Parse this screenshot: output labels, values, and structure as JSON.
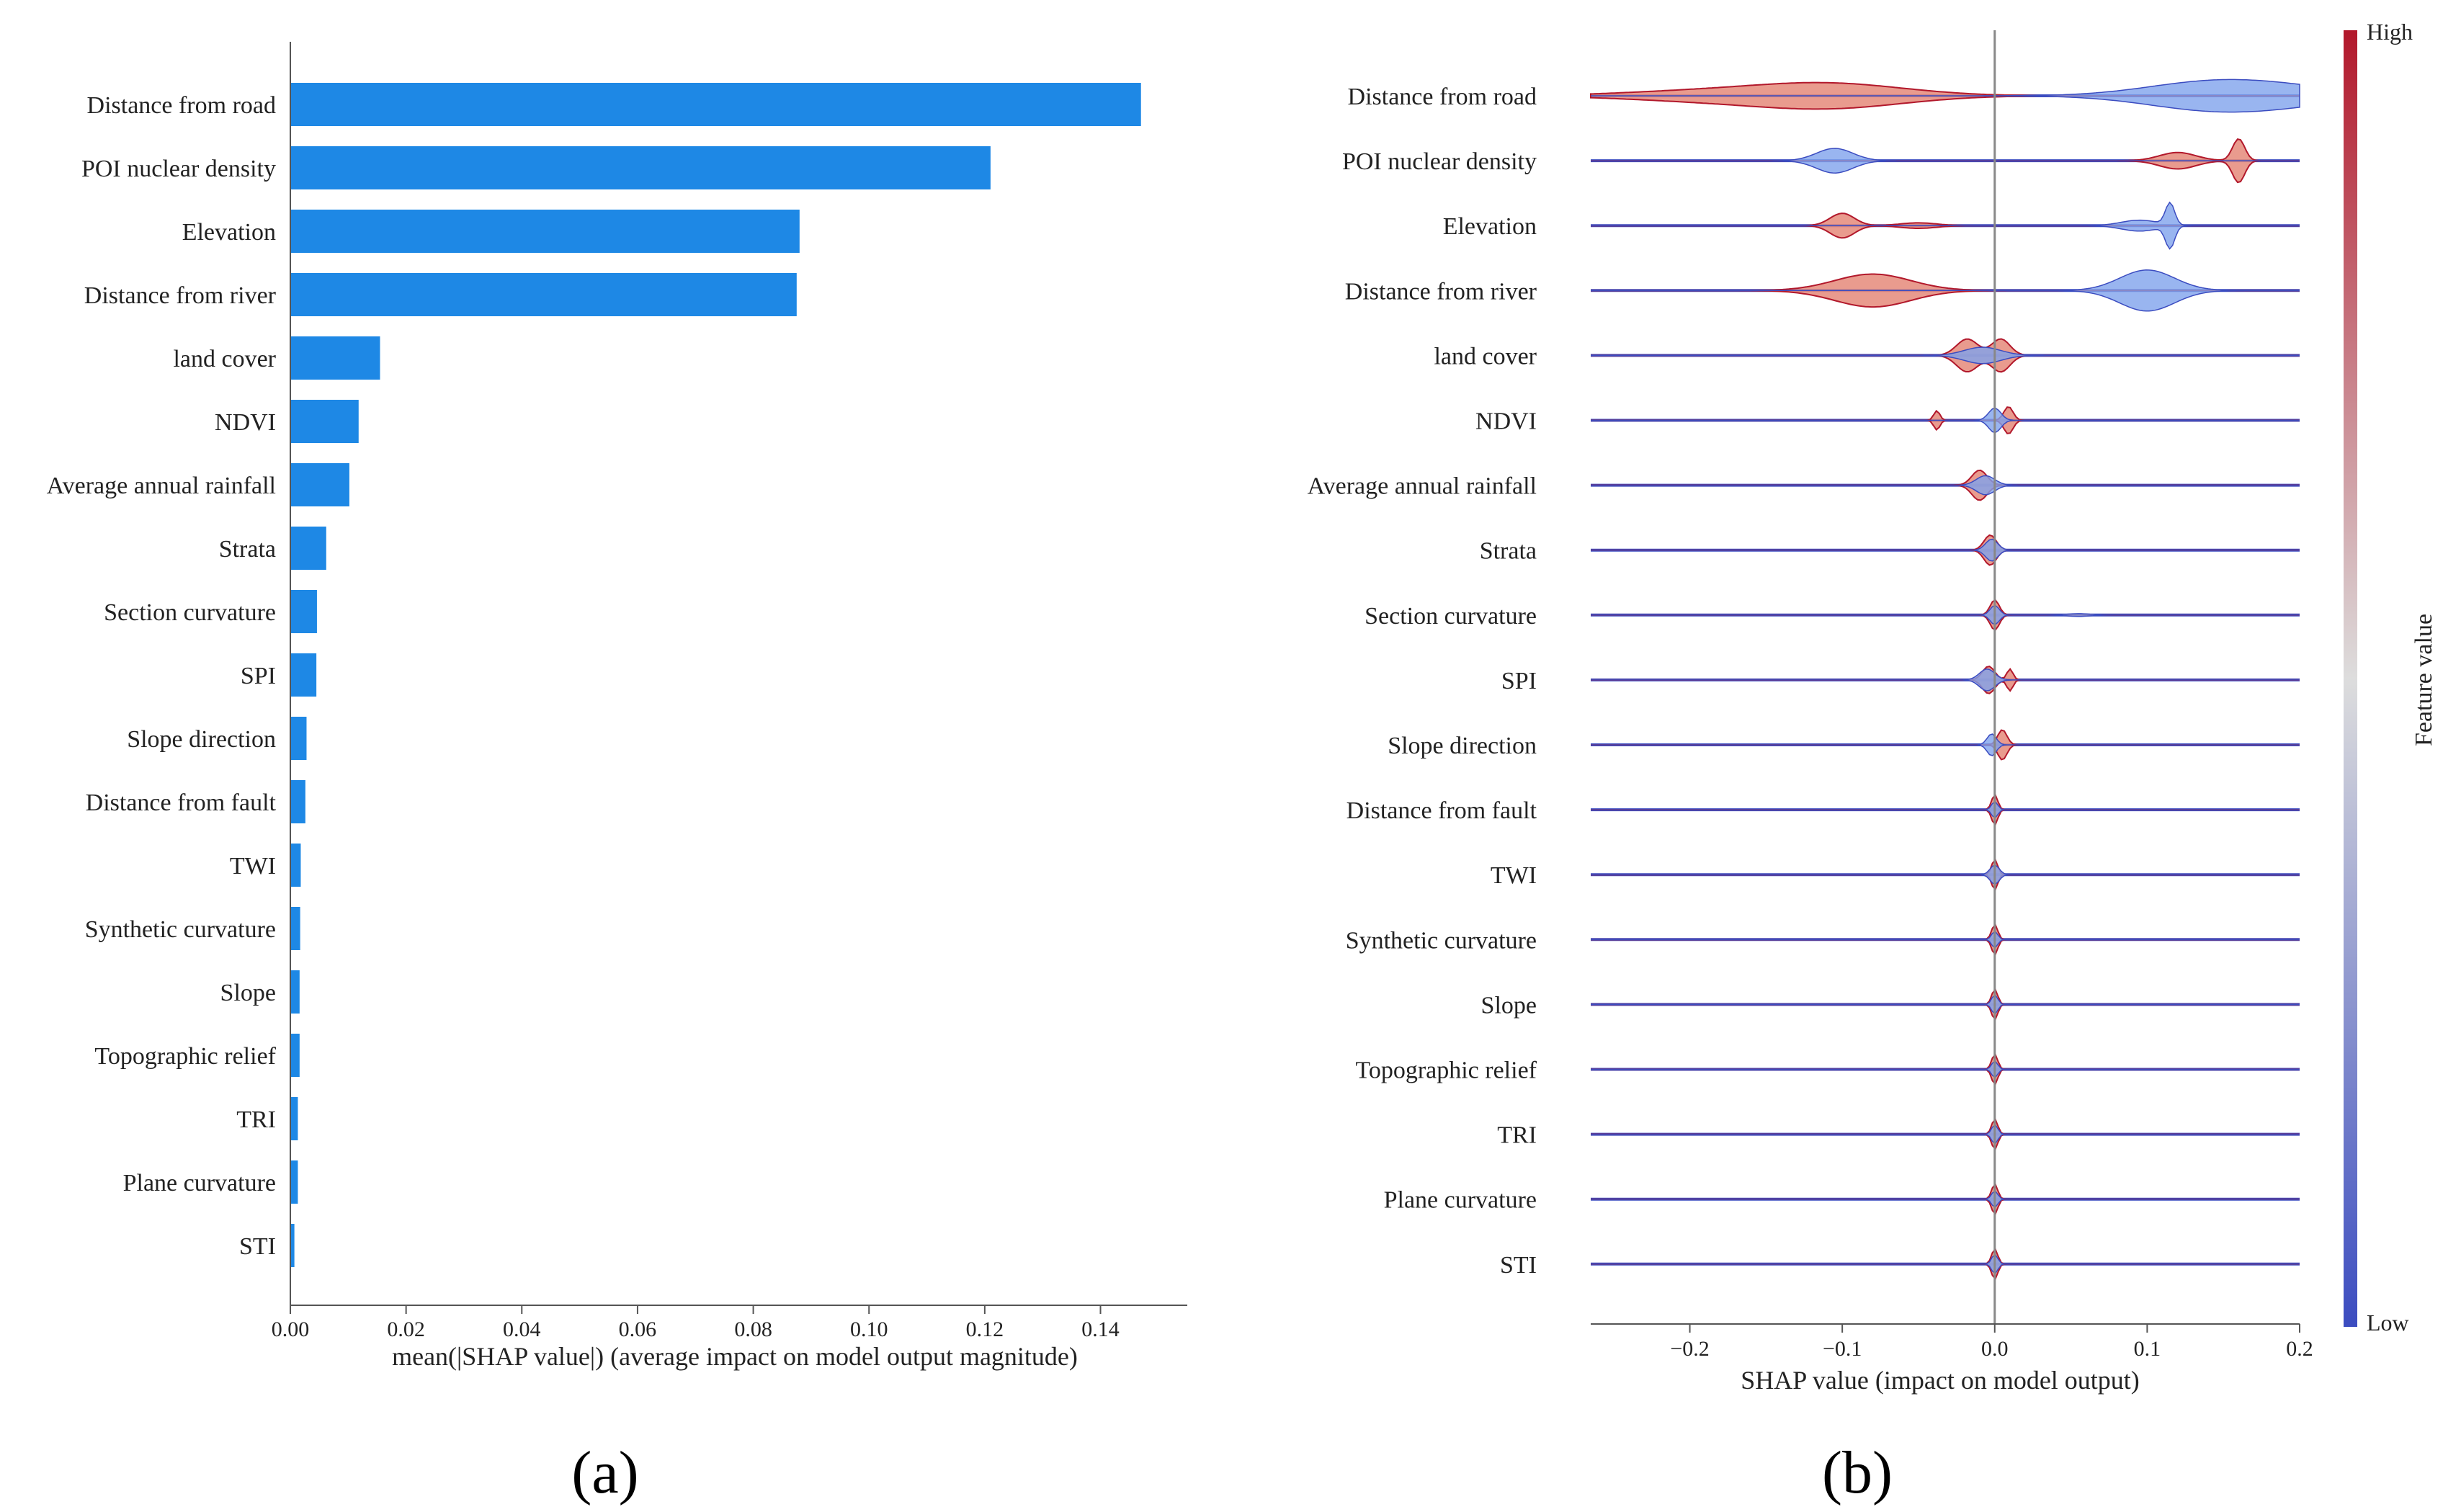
{
  "chart_data": [
    {
      "panel": "a",
      "type": "bar",
      "orientation": "horizontal",
      "categories": [
        "Distance from road",
        "POI nuclear density",
        "Elevation",
        "Distance from river",
        "land cover",
        "NDVI",
        "Average annual rainfall",
        "Strata",
        "Section curvature",
        "SPI",
        "Slope direction",
        "Distance from fault",
        "TWI",
        "Synthetic curvature",
        "Slope",
        "Topographic relief",
        "TRI",
        "Plane curvature",
        "STI"
      ],
      "values": [
        0.147,
        0.121,
        0.088,
        0.0875,
        0.0155,
        0.0118,
        0.0102,
        0.0062,
        0.0046,
        0.0045,
        0.0028,
        0.0026,
        0.0018,
        0.0017,
        0.0016,
        0.0016,
        0.0013,
        0.0013,
        0.0007
      ],
      "xlabel": "mean(|SHAP value|) (average impact on model output magnitude)",
      "xlim": [
        0,
        0.155
      ],
      "xticks": [
        "0.00",
        "0.02",
        "0.04",
        "0.06",
        "0.08",
        "0.10",
        "0.12",
        "0.14"
      ],
      "bar_color": "#1E88E5"
    },
    {
      "panel": "b",
      "type": "violin",
      "categories": [
        "Distance from road",
        "POI nuclear density",
        "Elevation",
        "Distance from river",
        "land cover",
        "NDVI",
        "Average annual rainfall",
        "Strata",
        "Section curvature",
        "SPI",
        "Slope direction",
        "Distance from fault",
        "TWI",
        "Synthetic curvature",
        "Slope",
        "Topographic relief",
        "TRI",
        "Plane curvature",
        "STI"
      ],
      "distributions": [
        {
          "high": [
            {
              "c": -0.11,
              "w": 0.05,
              "h": 0.45
            },
            {
              "c": -0.2,
              "w": 0.05,
              "h": 0.15
            }
          ],
          "low": [
            {
              "c": 0.17,
              "w": 0.05,
              "h": 0.45
            },
            {
              "c": 0.13,
              "w": 0.04,
              "h": 0.2
            }
          ]
        },
        {
          "high": [
            {
              "c": 0.16,
              "w": 0.004,
              "h": 0.8
            },
            {
              "c": 0.12,
              "w": 0.012,
              "h": 0.3
            }
          ],
          "low": [
            {
              "c": -0.105,
              "w": 0.012,
              "h": 0.45
            }
          ]
        },
        {
          "high": [
            {
              "c": -0.1,
              "w": 0.008,
              "h": 0.45
            },
            {
              "c": -0.05,
              "w": 0.012,
              "h": 0.1
            }
          ],
          "low": [
            {
              "c": 0.115,
              "w": 0.003,
              "h": 0.8
            },
            {
              "c": 0.095,
              "w": 0.012,
              "h": 0.2
            }
          ]
        },
        {
          "high": [
            {
              "c": -0.08,
              "w": 0.025,
              "h": 0.6
            }
          ],
          "low": [
            {
              "c": 0.1,
              "w": 0.018,
              "h": 0.75
            }
          ]
        },
        {
          "high": [
            {
              "c": -0.018,
              "w": 0.007,
              "h": 0.6
            },
            {
              "c": 0.004,
              "w": 0.006,
              "h": 0.6
            }
          ],
          "low": [
            {
              "c": -0.008,
              "w": 0.012,
              "h": 0.3
            }
          ]
        },
        {
          "high": [
            {
              "c": -0.038,
              "w": 0.002,
              "h": 0.35
            },
            {
              "c": 0.009,
              "w": 0.003,
              "h": 0.5
            }
          ],
          "low": [
            {
              "c": 0.0,
              "w": 0.004,
              "h": 0.45
            }
          ]
        },
        {
          "high": [
            {
              "c": -0.01,
              "w": 0.005,
              "h": 0.55
            }
          ],
          "low": [
            {
              "c": -0.006,
              "w": 0.006,
              "h": 0.35
            }
          ]
        },
        {
          "high": [
            {
              "c": -0.003,
              "w": 0.004,
              "h": 0.55
            }
          ],
          "low": [
            {
              "c": -0.002,
              "w": 0.004,
              "h": 0.4
            }
          ]
        },
        {
          "high": [
            {
              "c": 0.0,
              "w": 0.003,
              "h": 0.55
            }
          ],
          "low": [
            {
              "c": 0.0,
              "w": 0.003,
              "h": 0.35
            },
            {
              "c": 0.055,
              "w": 0.008,
              "h": 0.05
            }
          ]
        },
        {
          "high": [
            {
              "c": 0.01,
              "w": 0.002,
              "h": 0.4
            },
            {
              "c": -0.004,
              "w": 0.004,
              "h": 0.5
            }
          ],
          "low": [
            {
              "c": -0.005,
              "w": 0.005,
              "h": 0.4
            }
          ]
        },
        {
          "high": [
            {
              "c": 0.005,
              "w": 0.003,
              "h": 0.55
            }
          ],
          "low": [
            {
              "c": -0.002,
              "w": 0.003,
              "h": 0.4
            }
          ]
        },
        {
          "high": [
            {
              "c": 0.0,
              "w": 0.002,
              "h": 0.55
            }
          ],
          "low": [
            {
              "c": 0.0,
              "w": 0.002,
              "h": 0.3
            }
          ]
        },
        {
          "high": [
            {
              "c": 0.0,
              "w": 0.002,
              "h": 0.55
            }
          ],
          "low": [
            {
              "c": 0.0,
              "w": 0.003,
              "h": 0.35
            }
          ]
        },
        {
          "high": [
            {
              "c": 0.0,
              "w": 0.002,
              "h": 0.55
            }
          ],
          "low": [
            {
              "c": 0.0,
              "w": 0.002,
              "h": 0.3
            }
          ]
        },
        {
          "high": [
            {
              "c": 0.0,
              "w": 0.002,
              "h": 0.55
            }
          ],
          "low": [
            {
              "c": 0.0,
              "w": 0.002,
              "h": 0.35
            }
          ]
        },
        {
          "high": [
            {
              "c": 0.0,
              "w": 0.002,
              "h": 0.55
            }
          ],
          "low": [
            {
              "c": 0.0,
              "w": 0.002,
              "h": 0.3
            }
          ]
        },
        {
          "high": [
            {
              "c": 0.0,
              "w": 0.002,
              "h": 0.55
            }
          ],
          "low": [
            {
              "c": 0.0,
              "w": 0.002,
              "h": 0.35
            }
          ]
        },
        {
          "high": [
            {
              "c": 0.0,
              "w": 0.002,
              "h": 0.55
            }
          ],
          "low": [
            {
              "c": 0.0,
              "w": 0.002,
              "h": 0.3
            }
          ]
        },
        {
          "high": [
            {
              "c": 0.0,
              "w": 0.002,
              "h": 0.55
            }
          ],
          "low": [
            {
              "c": 0.0,
              "w": 0.002,
              "h": 0.35
            }
          ]
        }
      ],
      "xlabel": "SHAP value (impact on model output)",
      "xlim": [
        -0.265,
        0.2
      ],
      "xticks": [
        -0.2,
        -0.1,
        0.0,
        0.1,
        0.2
      ],
      "xtick_labels": [
        "−0.2",
        "−0.1",
        "0.0",
        "0.1",
        "0.2"
      ],
      "colorbar": {
        "label": "Feature value",
        "high_label": "High",
        "low_label": "Low",
        "high_color": "#B2182B",
        "mid_color": "#DDDDDD",
        "low_color": "#3B4CC0"
      },
      "zero_line_color": "#888888"
    }
  ],
  "panel_labels": {
    "a": "(a)",
    "b": "(b)"
  }
}
